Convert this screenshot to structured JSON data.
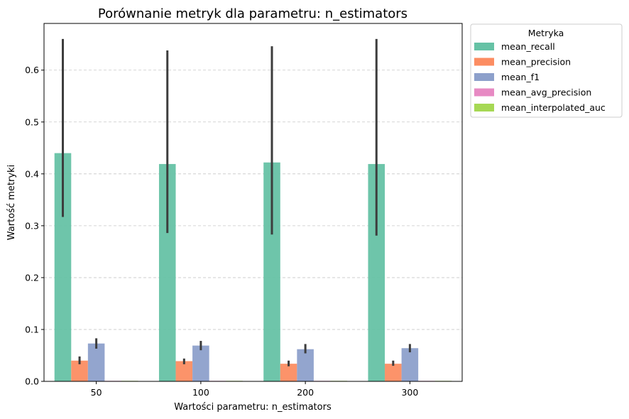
{
  "chart_data": {
    "type": "bar",
    "title": "Porównanie metryk dla parametru: n_estimators",
    "xlabel": "Wartości parametru: n_estimators",
    "ylabel": "Wartość metryki",
    "categories": [
      "50",
      "100",
      "200",
      "300"
    ],
    "ylim": [
      0,
      0.69
    ],
    "yticks": [
      "0.0",
      "0.1",
      "0.2",
      "0.3",
      "0.4",
      "0.5",
      "0.6"
    ],
    "grid": "horizontal-dashed",
    "legend": {
      "title": "Metryka",
      "placement": "outside-right"
    },
    "series": [
      {
        "name": "mean_recall",
        "color": "#66c2a5",
        "values": [
          0.44,
          0.419,
          0.422,
          0.419
        ],
        "error_low": [
          0.317,
          0.286,
          0.283,
          0.281
        ],
        "error_high": [
          0.66,
          0.638,
          0.646,
          0.66
        ]
      },
      {
        "name": "mean_precision",
        "color": "#fc8d62",
        "values": [
          0.04,
          0.039,
          0.034,
          0.034
        ],
        "error_low": [
          0.033,
          0.033,
          0.029,
          0.03
        ],
        "error_high": [
          0.048,
          0.044,
          0.04,
          0.04
        ]
      },
      {
        "name": "mean_f1",
        "color": "#8da0cb",
        "values": [
          0.073,
          0.069,
          0.062,
          0.064
        ],
        "error_low": [
          0.063,
          0.06,
          0.054,
          0.056
        ],
        "error_high": [
          0.083,
          0.078,
          0.072,
          0.072
        ]
      },
      {
        "name": "mean_avg_precision",
        "color": "#e78ac3",
        "values": [
          0.001,
          0.001,
          0.001,
          0.001
        ]
      },
      {
        "name": "mean_interpolated_auc",
        "color": "#a6d854",
        "values": [
          0.001,
          0.001,
          0.001,
          0.001
        ]
      }
    ]
  }
}
